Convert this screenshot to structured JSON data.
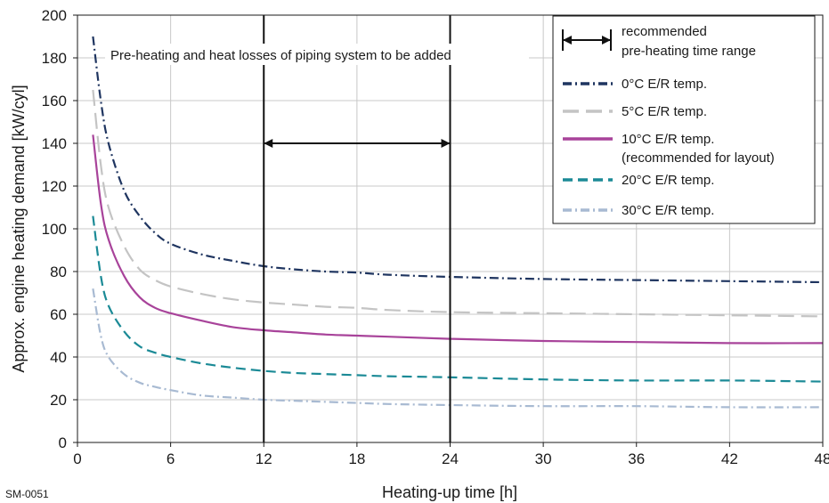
{
  "figure_id": "SM-0051",
  "chart_data": {
    "type": "line",
    "xlabel": "Heating-up time [h]",
    "ylabel": "Approx. engine heating demand [kW/cyl]",
    "xlim": [
      0,
      48
    ],
    "ylim": [
      0,
      200
    ],
    "x_ticks": [
      0,
      6,
      12,
      18,
      24,
      30,
      36,
      42,
      48
    ],
    "y_ticks": [
      0,
      20,
      40,
      60,
      80,
      100,
      120,
      140,
      160,
      180,
      200
    ],
    "grid": true,
    "legend_position": "top-right",
    "legend_range_label": [
      "recommended",
      "pre-heating time range"
    ],
    "annotation": "Pre-heating and heat losses of piping system to be added",
    "recommended_range": [
      12,
      24
    ],
    "vertical_lines": [
      12,
      24
    ],
    "series": [
      {
        "name": "0°C E/R temp.",
        "color": "#1f3560",
        "dash": "dashdot",
        "points": [
          [
            1.0,
            190
          ],
          [
            1.5,
            160
          ],
          [
            2,
            140
          ],
          [
            3,
            118
          ],
          [
            4,
            106
          ],
          [
            5,
            98
          ],
          [
            6,
            93
          ],
          [
            8,
            88
          ],
          [
            10,
            85
          ],
          [
            12,
            82.5
          ],
          [
            14,
            81
          ],
          [
            16,
            80
          ],
          [
            18,
            79.5
          ],
          [
            20,
            78.5
          ],
          [
            24,
            77.5
          ],
          [
            30,
            76.5
          ],
          [
            36,
            76
          ],
          [
            42,
            75.5
          ],
          [
            48,
            75
          ]
        ]
      },
      {
        "name": "5°C E/R temp.",
        "color": "#c4c4c4",
        "dash": "longdash",
        "points": [
          [
            1.0,
            165
          ],
          [
            1.5,
            130
          ],
          [
            2,
            110
          ],
          [
            3,
            92
          ],
          [
            4,
            81
          ],
          [
            5,
            76
          ],
          [
            6,
            73
          ],
          [
            8,
            69.5
          ],
          [
            10,
            67
          ],
          [
            12,
            65.5
          ],
          [
            14,
            64.5
          ],
          [
            16,
            63.5
          ],
          [
            18,
            63
          ],
          [
            20,
            62
          ],
          [
            24,
            61
          ],
          [
            30,
            60.5
          ],
          [
            36,
            60
          ],
          [
            42,
            59.5
          ],
          [
            48,
            59
          ]
        ]
      },
      {
        "name": "10°C E/R temp.\n(recommended for layout)",
        "color": "#a8439a",
        "dash": "solid",
        "points": [
          [
            1.0,
            144
          ],
          [
            1.5,
            112
          ],
          [
            2,
            95
          ],
          [
            3,
            78
          ],
          [
            4,
            68
          ],
          [
            5,
            63
          ],
          [
            6,
            60.5
          ],
          [
            8,
            57
          ],
          [
            10,
            54
          ],
          [
            12,
            52.5
          ],
          [
            14,
            51.5
          ],
          [
            16,
            50.5
          ],
          [
            18,
            50
          ],
          [
            20,
            49.5
          ],
          [
            24,
            48.5
          ],
          [
            30,
            47.5
          ],
          [
            36,
            47
          ],
          [
            42,
            46.5
          ],
          [
            48,
            46.5
          ]
        ]
      },
      {
        "name": "20°C E/R temp.",
        "color": "#1b8a96",
        "dash": "dashed",
        "points": [
          [
            1.0,
            106
          ],
          [
            1.5,
            78
          ],
          [
            2,
            64
          ],
          [
            3,
            52
          ],
          [
            4,
            45
          ],
          [
            5,
            42
          ],
          [
            6,
            40
          ],
          [
            8,
            37
          ],
          [
            10,
            35
          ],
          [
            12,
            33.5
          ],
          [
            14,
            32.5
          ],
          [
            16,
            32
          ],
          [
            18,
            31.5
          ],
          [
            20,
            31
          ],
          [
            24,
            30.5
          ],
          [
            30,
            29.5
          ],
          [
            36,
            29
          ],
          [
            42,
            29
          ],
          [
            48,
            28.5
          ]
        ]
      },
      {
        "name": "30°C E/R temp.",
        "color": "#a8bad2",
        "dash": "dashdot",
        "points": [
          [
            1.0,
            72
          ],
          [
            1.5,
            50
          ],
          [
            2,
            40
          ],
          [
            3,
            32
          ],
          [
            4,
            28
          ],
          [
            5,
            26
          ],
          [
            6,
            24.5
          ],
          [
            8,
            22
          ],
          [
            10,
            21
          ],
          [
            12,
            20
          ],
          [
            14,
            19.5
          ],
          [
            16,
            19
          ],
          [
            18,
            18.5
          ],
          [
            20,
            18
          ],
          [
            24,
            17.5
          ],
          [
            30,
            17
          ],
          [
            36,
            17
          ],
          [
            42,
            16.5
          ],
          [
            48,
            16.5
          ]
        ]
      }
    ]
  }
}
